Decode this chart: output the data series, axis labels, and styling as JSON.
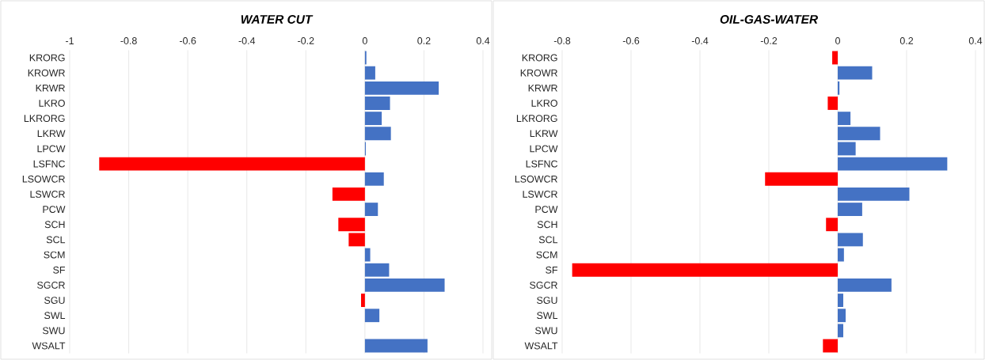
{
  "chart_data": [
    {
      "type": "bar",
      "orientation": "horizontal",
      "title": "WATER CUT",
      "categories": [
        "KRORG",
        "KROWR",
        "KRWR",
        "LKRO",
        "LKRORG",
        "LKRW",
        "LPCW",
        "LSFNC",
        "LSOWCR",
        "LSWCR",
        "PCW",
        "SCH",
        "SCL",
        "SCM",
        "SF",
        "SGCR",
        "SGU",
        "SWL",
        "SWU",
        "WSALT"
      ],
      "values": [
        0.005,
        0.035,
        0.25,
        0.085,
        0.057,
        0.088,
        0.003,
        -0.9,
        0.064,
        -0.11,
        0.044,
        -0.09,
        -0.055,
        0.018,
        0.082,
        0.27,
        -0.013,
        0.049,
        0,
        0.212
      ],
      "colors": [
        "#4472c4",
        "#4472c4",
        "#4472c4",
        "#4472c4",
        "#4472c4",
        "#4472c4",
        "#4472c4",
        "#ff0000",
        "#4472c4",
        "#ff0000",
        "#4472c4",
        "#ff0000",
        "#ff0000",
        "#4472c4",
        "#4472c4",
        "#4472c4",
        "#ff0000",
        "#4472c4",
        "#4472c4",
        "#4472c4"
      ],
      "xlim": [
        -1,
        0.4
      ],
      "xticks": [
        -1,
        -0.8,
        -0.6,
        -0.4,
        -0.2,
        0,
        0.2,
        0.4
      ],
      "grid": "x"
    },
    {
      "type": "bar",
      "orientation": "horizontal",
      "title": "OIL-GAS-WATER",
      "categories": [
        "KRORG",
        "KROWR",
        "KRWR",
        "LKRO",
        "LKRORG",
        "LKRW",
        "LPCW",
        "LSFNC",
        "LSOWCR",
        "LSWCR",
        "PCW",
        "SCH",
        "SCL",
        "SCM",
        "SF",
        "SGCR",
        "SGU",
        "SWL",
        "SWU",
        "WSALT"
      ],
      "values": [
        -0.016,
        0.1,
        0.005,
        -0.029,
        0.037,
        0.123,
        0.052,
        0.318,
        -0.211,
        0.208,
        0.071,
        -0.034,
        0.073,
        0.018,
        -0.771,
        0.156,
        0.016,
        0.023,
        0.016,
        -0.043
      ],
      "colors": [
        "#ff0000",
        "#4472c4",
        "#4472c4",
        "#ff0000",
        "#4472c4",
        "#4472c4",
        "#4472c4",
        "#4472c4",
        "#ff0000",
        "#4472c4",
        "#4472c4",
        "#ff0000",
        "#4472c4",
        "#4472c4",
        "#ff0000",
        "#4472c4",
        "#4472c4",
        "#4472c4",
        "#4472c4",
        "#ff0000"
      ],
      "xlim": [
        -0.8,
        0.4
      ],
      "xticks": [
        -0.8,
        -0.6,
        -0.4,
        -0.2,
        0,
        0.2,
        0.4
      ],
      "grid": "x"
    }
  ]
}
